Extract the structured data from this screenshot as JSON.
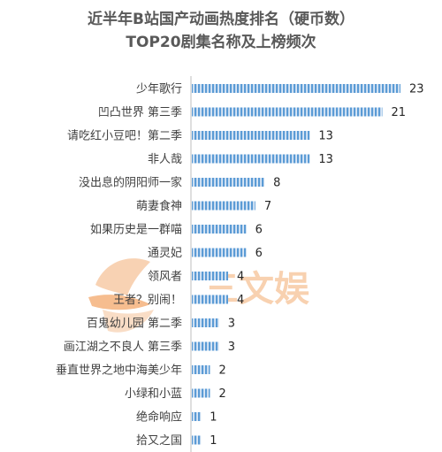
{
  "watermark": {
    "text": "三文娱",
    "color": "#f4a76a"
  },
  "chart_data": {
    "type": "bar",
    "orientation": "horizontal",
    "title": "近半年B站国产动画热度排名（硬币数）",
    "subtitle": "TOP20剧集名称及上榜频次",
    "xlabel": "",
    "ylabel": "",
    "grid": false,
    "bar_color": "#5b9bd5",
    "bar_pattern": "vertical-stripes",
    "categories": [
      "少年歌行",
      "凹凸世界 第三季",
      "请吃红小豆吧！第二季",
      "非人哉",
      "没出息的阴阳师一家",
      "萌妻食神",
      "如果历史是一群喵",
      "通灵妃",
      "领风者",
      "王者？别闹！",
      "百鬼幼儿园 第二季",
      "画江湖之不良人 第三季",
      "垂直世界之地中海美少年",
      "小绿和小蓝",
      "绝命响应",
      "拾又之国"
    ],
    "values": [
      23,
      21,
      13,
      13,
      8,
      7,
      6,
      6,
      4,
      4,
      3,
      3,
      2,
      2,
      1,
      1
    ],
    "xlim": [
      0,
      23
    ]
  }
}
